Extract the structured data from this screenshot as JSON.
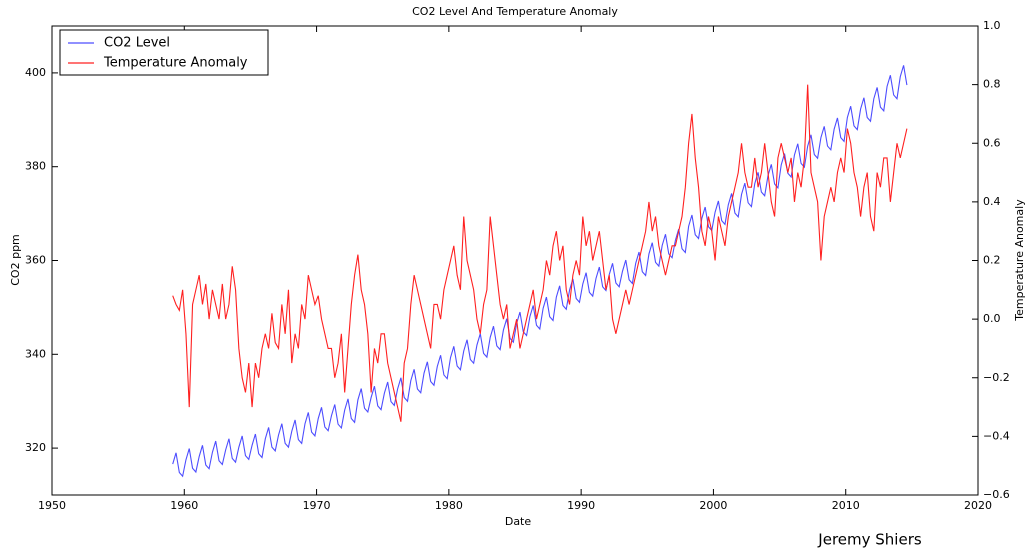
{
  "chart_data": {
    "type": "line",
    "title": "CO2 Level And Temperature Anomaly",
    "xlabel": "Date",
    "ylabel": "CO2 ppm",
    "y2label": "Temperature Anomaly",
    "annotation": "Jeremy Shiers",
    "legend": "upper left",
    "xlim": [
      1950,
      2020
    ],
    "xticks": [
      1950,
      1960,
      1970,
      1980,
      1990,
      2000,
      2010,
      2020
    ],
    "ylim": [
      310,
      410
    ],
    "yticks": [
      320,
      340,
      360,
      380,
      400
    ],
    "y2lim": [
      -0.6,
      1.0
    ],
    "y2ticks": [
      {
        "value": -0.6,
        "label": "−0.6"
      },
      {
        "value": -0.4,
        "label": "−0.4"
      },
      {
        "value": -0.2,
        "label": "−0.2"
      },
      {
        "value": 0.0,
        "label": "0.0"
      },
      0.2,
      0.4,
      0.6,
      0.8,
      {
        "value": 1.0,
        "label": "1.0"
      }
    ],
    "x": [
      1959.125,
      1959.375,
      1959.625,
      1959.875,
      1960.125,
      1960.375,
      1960.625,
      1960.875,
      1961.125,
      1961.375,
      1961.625,
      1961.875,
      1962.125,
      1962.375,
      1962.625,
      1962.875,
      1963.125,
      1963.375,
      1963.625,
      1963.875,
      1964.125,
      1964.375,
      1964.625,
      1964.875,
      1965.125,
      1965.375,
      1965.625,
      1965.875,
      1966.125,
      1966.375,
      1966.625,
      1966.875,
      1967.125,
      1967.375,
      1967.625,
      1967.875,
      1968.125,
      1968.375,
      1968.625,
      1968.875,
      1969.125,
      1969.375,
      1969.625,
      1969.875,
      1970.125,
      1970.375,
      1970.625,
      1970.875,
      1971.125,
      1971.375,
      1971.625,
      1971.875,
      1972.125,
      1972.375,
      1972.625,
      1972.875,
      1973.125,
      1973.375,
      1973.625,
      1973.875,
      1974.125,
      1974.375,
      1974.625,
      1974.875,
      1975.125,
      1975.375,
      1975.625,
      1975.875,
      1976.125,
      1976.375,
      1976.625,
      1976.875,
      1977.125,
      1977.375,
      1977.625,
      1977.875,
      1978.125,
      1978.375,
      1978.625,
      1978.875,
      1979.125,
      1979.375,
      1979.625,
      1979.875,
      1980.125,
      1980.375,
      1980.625,
      1980.875,
      1981.125,
      1981.375,
      1981.625,
      1981.875,
      1982.125,
      1982.375,
      1982.625,
      1982.875,
      1983.125,
      1983.375,
      1983.625,
      1983.875,
      1984.125,
      1984.375,
      1984.625,
      1984.875,
      1985.125,
      1985.375,
      1985.625,
      1985.875,
      1986.125,
      1986.375,
      1986.625,
      1986.875,
      1987.125,
      1987.375,
      1987.625,
      1987.875,
      1988.125,
      1988.375,
      1988.625,
      1988.875,
      1989.125,
      1989.375,
      1989.625,
      1989.875,
      1990.125,
      1990.375,
      1990.625,
      1990.875,
      1991.125,
      1991.375,
      1991.625,
      1991.875,
      1992.125,
      1992.375,
      1992.625,
      1992.875,
      1993.125,
      1993.375,
      1993.625,
      1993.875,
      1994.125,
      1994.375,
      1994.625,
      1994.875,
      1995.125,
      1995.375,
      1995.625,
      1995.875,
      1996.125,
      1996.375,
      1996.625,
      1996.875,
      1997.125,
      1997.375,
      1997.625,
      1997.875,
      1998.125,
      1998.375,
      1998.625,
      1998.875,
      1999.125,
      1999.375,
      1999.625,
      1999.875,
      2000.125,
      2000.375,
      2000.625,
      2000.875,
      2001.125,
      2001.375,
      2001.625,
      2001.875,
      2002.125,
      2002.375,
      2002.625,
      2002.875,
      2003.125,
      2003.375,
      2003.625,
      2003.875,
      2004.125,
      2004.375,
      2004.625,
      2004.875,
      2005.125,
      2005.375,
      2005.625,
      2005.875,
      2006.125,
      2006.375,
      2006.625,
      2006.875,
      2007.125,
      2007.375,
      2007.625,
      2007.875,
      2008.125,
      2008.375,
      2008.625,
      2008.875,
      2009.125,
      2009.375,
      2009.625,
      2009.875,
      2010.125,
      2010.375,
      2010.625,
      2010.875,
      2011.125,
      2011.375,
      2011.625,
      2011.875,
      2012.125,
      2012.375,
      2012.625,
      2012.875,
      2013.125,
      2013.375,
      2013.625,
      2013.875,
      2014.125,
      2014.375,
      2014.625
    ],
    "series": [
      {
        "name": "CO2 Level",
        "color": "#4d4dff",
        "axis": "y",
        "values": [
          316.6,
          319.0,
          314.8,
          314.0,
          317.5,
          319.9,
          315.7,
          314.9,
          318.2,
          320.6,
          316.4,
          315.6,
          319.1,
          321.5,
          317.3,
          316.5,
          319.6,
          322.0,
          317.8,
          317.0,
          320.2,
          322.6,
          318.4,
          317.6,
          320.6,
          323.0,
          318.8,
          318.0,
          322.0,
          324.4,
          320.2,
          319.4,
          322.8,
          325.2,
          321.0,
          320.2,
          323.6,
          326.0,
          321.8,
          321.0,
          325.2,
          327.6,
          323.4,
          322.6,
          326.3,
          328.7,
          324.5,
          323.7,
          326.9,
          329.3,
          325.1,
          324.3,
          328.1,
          330.5,
          326.3,
          325.5,
          330.3,
          332.7,
          328.5,
          327.7,
          330.8,
          333.2,
          329.0,
          328.2,
          331.7,
          334.1,
          329.9,
          329.1,
          332.6,
          335.0,
          330.8,
          330.0,
          334.4,
          336.8,
          332.6,
          331.8,
          336.0,
          338.4,
          334.2,
          333.4,
          337.4,
          339.8,
          335.6,
          334.8,
          339.3,
          341.7,
          337.5,
          336.7,
          340.7,
          343.1,
          338.9,
          338.1,
          342.0,
          344.4,
          340.2,
          339.4,
          343.6,
          346.0,
          341.8,
          341.0,
          345.2,
          347.6,
          343.4,
          342.6,
          346.6,
          349.0,
          344.8,
          344.0,
          348.0,
          350.4,
          346.2,
          345.4,
          349.8,
          352.2,
          348.0,
          347.2,
          352.2,
          354.6,
          350.4,
          349.6,
          353.7,
          356.1,
          351.9,
          351.1,
          355.0,
          357.4,
          353.2,
          352.4,
          356.2,
          358.6,
          354.4,
          353.6,
          357.0,
          359.4,
          355.2,
          354.4,
          357.7,
          360.1,
          355.9,
          355.1,
          359.4,
          361.8,
          357.6,
          356.8,
          361.4,
          363.8,
          359.6,
          358.8,
          363.2,
          365.6,
          361.4,
          360.6,
          364.3,
          366.7,
          362.5,
          361.7,
          367.3,
          369.7,
          365.5,
          364.7,
          369.0,
          371.4,
          367.2,
          366.4,
          370.3,
          372.7,
          368.5,
          367.7,
          371.9,
          374.3,
          370.1,
          369.3,
          374.1,
          376.5,
          372.3,
          371.5,
          376.4,
          378.8,
          374.6,
          373.8,
          378.1,
          380.5,
          376.3,
          375.5,
          380.4,
          382.8,
          378.6,
          377.8,
          382.5,
          384.9,
          380.7,
          379.9,
          384.4,
          386.8,
          382.6,
          381.8,
          386.2,
          388.6,
          384.4,
          383.6,
          388.0,
          390.4,
          386.2,
          385.4,
          390.5,
          392.9,
          388.7,
          387.9,
          392.3,
          394.7,
          390.5,
          389.7,
          394.5,
          396.9,
          392.7,
          391.9,
          397.1,
          399.5,
          395.3,
          394.5,
          399.2,
          401.6,
          397.4
        ]
      },
      {
        "name": "Temperature Anomaly",
        "color": "#ff2020",
        "axis": "y2",
        "values": [
          0.08,
          0.05,
          0.03,
          0.1,
          -0.05,
          -0.3,
          0.05,
          0.1,
          0.15,
          0.05,
          0.12,
          0.0,
          0.1,
          0.05,
          0.0,
          0.12,
          0.0,
          0.05,
          0.18,
          0.1,
          -0.1,
          -0.2,
          -0.25,
          -0.15,
          -0.3,
          -0.15,
          -0.2,
          -0.1,
          -0.05,
          -0.1,
          0.02,
          -0.08,
          -0.1,
          0.05,
          -0.05,
          0.1,
          -0.15,
          -0.05,
          -0.1,
          0.05,
          0.0,
          0.15,
          0.1,
          0.05,
          0.08,
          0.0,
          -0.05,
          -0.1,
          -0.1,
          -0.2,
          -0.15,
          -0.05,
          -0.25,
          -0.1,
          0.05,
          0.15,
          0.22,
          0.1,
          0.05,
          -0.05,
          -0.25,
          -0.1,
          -0.15,
          -0.05,
          -0.05,
          -0.15,
          -0.2,
          -0.25,
          -0.3,
          -0.35,
          -0.15,
          -0.1,
          0.05,
          0.15,
          0.1,
          0.05,
          0.0,
          -0.05,
          -0.1,
          0.05,
          0.05,
          0.0,
          0.1,
          0.15,
          0.2,
          0.25,
          0.15,
          0.1,
          0.35,
          0.2,
          0.15,
          0.1,
          0.0,
          -0.05,
          0.05,
          0.1,
          0.35,
          0.25,
          0.15,
          0.05,
          0.0,
          0.05,
          -0.1,
          -0.05,
          0.0,
          -0.1,
          -0.05,
          0.0,
          0.05,
          0.1,
          0.0,
          0.05,
          0.1,
          0.2,
          0.15,
          0.25,
          0.3,
          0.2,
          0.25,
          0.1,
          0.05,
          0.15,
          0.2,
          0.15,
          0.35,
          0.25,
          0.3,
          0.2,
          0.25,
          0.3,
          0.2,
          0.1,
          0.15,
          0.0,
          -0.05,
          0.0,
          0.05,
          0.1,
          0.05,
          0.1,
          0.15,
          0.2,
          0.25,
          0.3,
          0.4,
          0.3,
          0.35,
          0.25,
          0.2,
          0.15,
          0.2,
          0.25,
          0.25,
          0.3,
          0.35,
          0.45,
          0.6,
          0.7,
          0.55,
          0.45,
          0.3,
          0.25,
          0.35,
          0.3,
          0.2,
          0.35,
          0.3,
          0.25,
          0.35,
          0.4,
          0.45,
          0.5,
          0.6,
          0.5,
          0.45,
          0.45,
          0.55,
          0.45,
          0.5,
          0.6,
          0.5,
          0.4,
          0.35,
          0.55,
          0.6,
          0.55,
          0.5,
          0.55,
          0.4,
          0.5,
          0.45,
          0.55,
          0.8,
          0.5,
          0.45,
          0.4,
          0.2,
          0.35,
          0.4,
          0.45,
          0.4,
          0.5,
          0.55,
          0.5,
          0.65,
          0.6,
          0.5,
          0.45,
          0.35,
          0.45,
          0.5,
          0.35,
          0.3,
          0.5,
          0.45,
          0.55,
          0.55,
          0.4,
          0.5,
          0.6,
          0.55,
          0.6,
          0.65
        ]
      }
    ]
  }
}
